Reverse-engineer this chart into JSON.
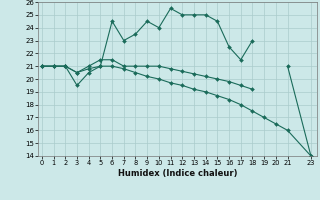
{
  "xlabel": "Humidex (Indice chaleur)",
  "x_all": [
    0,
    1,
    2,
    3,
    4,
    5,
    6,
    7,
    8,
    9,
    10,
    11,
    12,
    13,
    14,
    15,
    16,
    17,
    18,
    19,
    20,
    21,
    23
  ],
  "main_y": [
    21,
    21,
    21,
    19.5,
    20.5,
    21,
    24.5,
    23,
    23.5,
    24.5,
    24,
    25.5,
    25,
    25,
    25,
    24.5,
    22.5,
    21.5,
    23,
    null,
    null,
    21,
    14
  ],
  "upper_y": [
    21,
    21,
    21,
    20.5,
    21,
    21.5,
    21.5,
    21,
    21,
    21,
    21,
    20.8,
    20.6,
    20.4,
    20.2,
    20.0,
    19.8,
    19.5,
    19.2,
    null,
    null,
    null,
    null
  ],
  "lower_y": [
    21,
    21,
    21,
    20.5,
    20.8,
    21,
    21,
    20.8,
    20.5,
    20.2,
    20.0,
    19.7,
    19.5,
    19.2,
    19.0,
    18.7,
    18.4,
    18.0,
    17.5,
    17.0,
    16.5,
    16.0,
    14
  ],
  "ylim": [
    14,
    26
  ],
  "xlim": [
    -0.3,
    23.5
  ],
  "yticks": [
    14,
    15,
    16,
    17,
    18,
    19,
    20,
    21,
    22,
    23,
    24,
    25,
    26
  ],
  "xticks": [
    0,
    1,
    2,
    3,
    4,
    5,
    6,
    7,
    8,
    9,
    10,
    11,
    12,
    13,
    14,
    15,
    16,
    17,
    18,
    19,
    20,
    21,
    23
  ],
  "bg_color": "#cce8e8",
  "line_color": "#1a6b5a",
  "grid_color": "#aacccc"
}
